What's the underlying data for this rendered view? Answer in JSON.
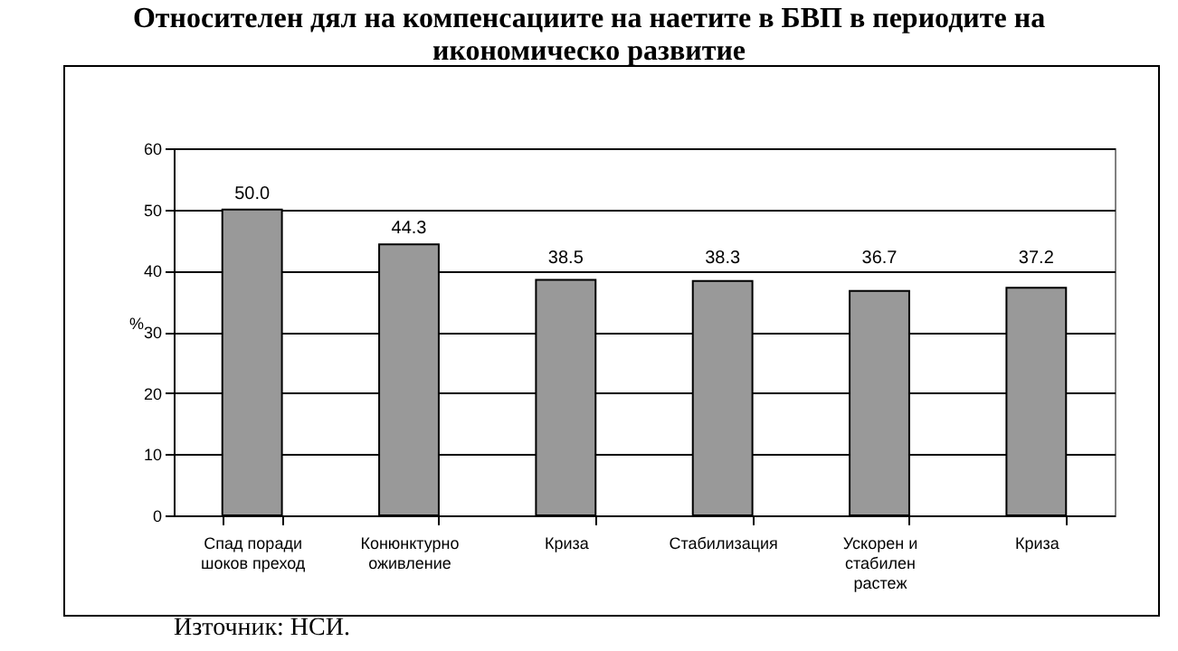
{
  "chart_data": {
    "type": "bar",
    "title": "Относителен дял на компенсациите на наетите в БВП в периодите на икономическо развитие",
    "categories": [
      "Спад поради шоков преход",
      "Конюнктурно оживление",
      "Криза",
      "Стабилизация",
      "Ускорен и стабилен растеж",
      "Криза"
    ],
    "values": [
      50.0,
      44.3,
      38.5,
      38.3,
      36.7,
      37.2
    ],
    "color": "#999999",
    "ylabel": "%",
    "ylim": [
      0,
      60
    ],
    "yticks": [
      0,
      10,
      20,
      30,
      40,
      50,
      60
    ],
    "grid": "y",
    "value_labels": [
      "50.0",
      "44.3",
      "38.5",
      "38.3",
      "36.7",
      "37.2"
    ],
    "annotations": [
      "Източник: НСИ."
    ]
  }
}
